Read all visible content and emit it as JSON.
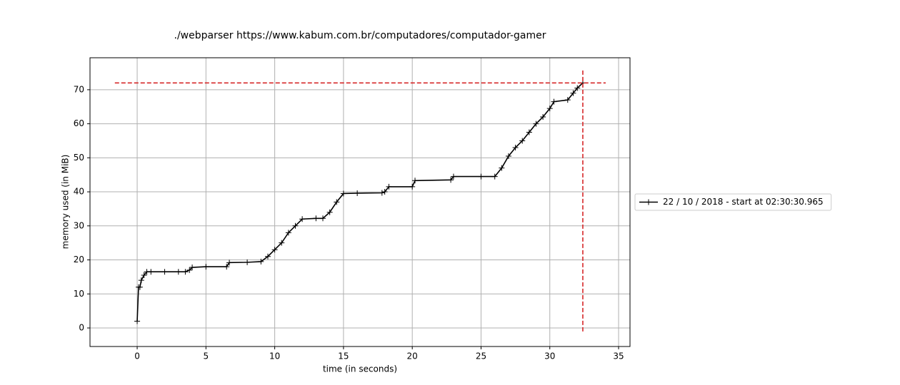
{
  "chart_data": {
    "type": "line",
    "title": "./webparser https://www.kabum.com.br/computadores/computador-gamer",
    "x_label": "time (in seconds)",
    "y_label": "memory used (in MiB)",
    "x": [
      0,
      0.1,
      0.2,
      0.3,
      0.5,
      0.7,
      1,
      2,
      3,
      3.5,
      3.8,
      4,
      5,
      6.5,
      6.7,
      8,
      9,
      9.5,
      10,
      10.5,
      11,
      11.5,
      12,
      13,
      13.5,
      14,
      14.5,
      15,
      16,
      17.8,
      18,
      18.3,
      20,
      20.2,
      22.8,
      23,
      25,
      26,
      26.5,
      27,
      27.5,
      28,
      28.5,
      29,
      29.5,
      30,
      30.3,
      31.3,
      31.7,
      32,
      32.4
    ],
    "series": [
      {
        "name": "22 / 10 / 2018 - start at 02:30:30.965",
        "color": "#000000",
        "values": [
          2,
          12,
          12,
          14,
          15.5,
          16.5,
          16.5,
          16.5,
          16.5,
          16.5,
          17,
          17.8,
          18,
          18,
          19.2,
          19.3,
          19.5,
          21,
          23,
          25,
          28,
          30,
          32,
          32.2,
          32.2,
          34,
          37,
          39.5,
          39.6,
          39.7,
          40,
          41.5,
          41.5,
          43.3,
          43.5,
          44.5,
          44.5,
          44.5,
          47,
          50.5,
          53,
          55,
          57.5,
          60,
          62,
          64.5,
          66.5,
          67,
          69,
          70.5,
          72
        ]
      }
    ],
    "peak": {
      "x": 32.4,
      "y": 72,
      "color": "#d62728"
    },
    "xlim": [
      -3.43,
      35.83
    ],
    "ylim": [
      -5.45,
      79.4
    ],
    "xticks": [
      0,
      5,
      10,
      15,
      20,
      25,
      30,
      35
    ],
    "yticks": [
      0,
      10,
      20,
      30,
      40,
      50,
      60,
      70
    ],
    "grid": true,
    "legend": "right"
  }
}
